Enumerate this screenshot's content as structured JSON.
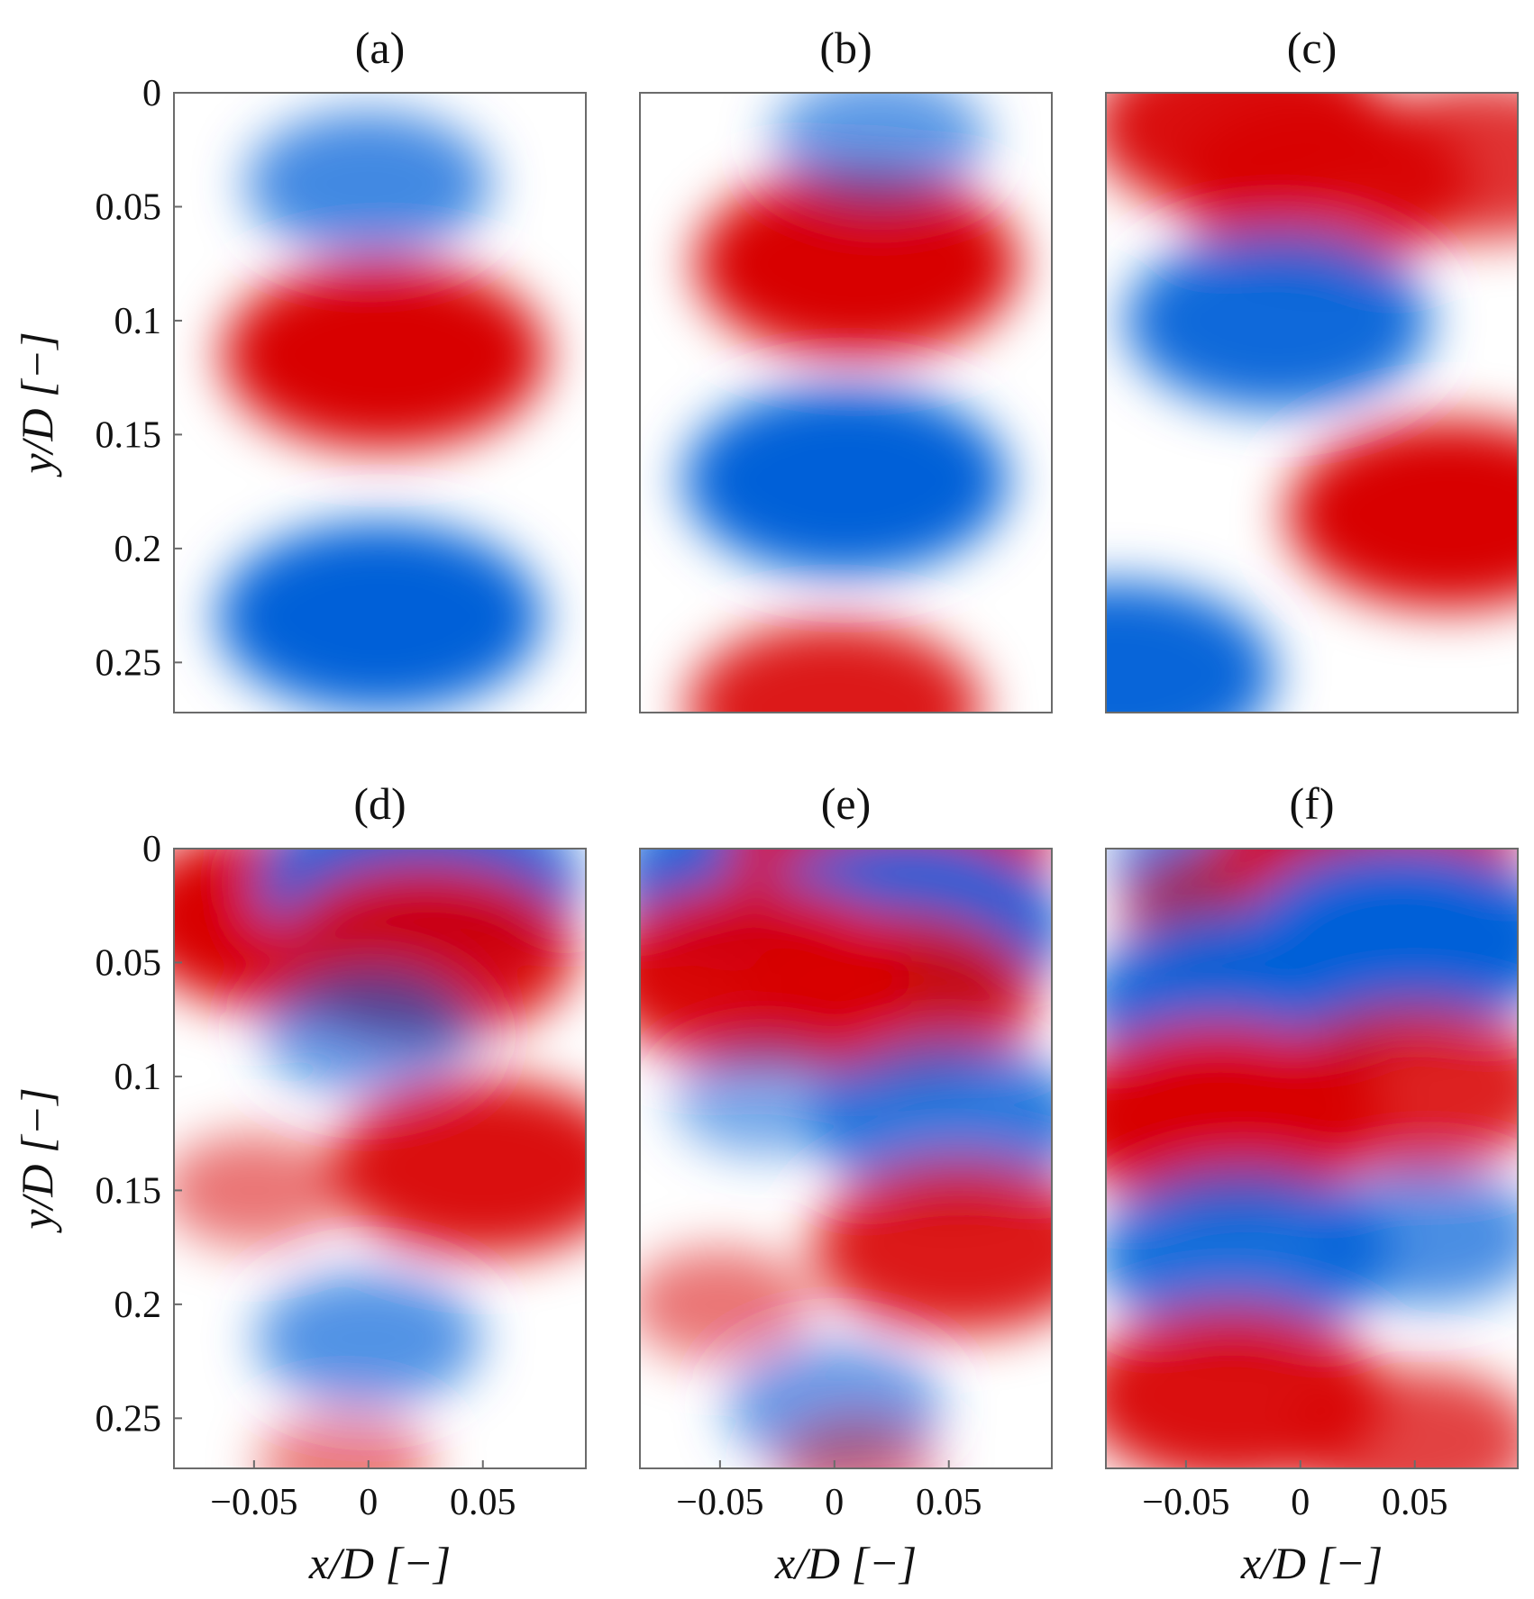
{
  "chart_data": [
    {
      "type": "heatmap",
      "title": "(a)",
      "xlabel": "",
      "ylabel": "y/D [−]",
      "xlim": [
        -0.085,
        0.095
      ],
      "ylim": [
        0,
        0.272
      ],
      "y_direction": "downward",
      "xticks": [],
      "xtick_labels": [],
      "yticks": [
        0,
        0.05,
        0.1,
        0.15,
        0.2,
        0.25
      ],
      "ytick_labels": [
        "0",
        "0.05",
        "0.1",
        "0.15",
        "0.2",
        "0.25"
      ],
      "colormap": "blue-white-red",
      "colorbar": false,
      "grid": false,
      "colors": {
        "positive": "#d80000",
        "negative": "#0060d8",
        "zero": "#ffffff"
      },
      "features": [
        {
          "sign": "negative",
          "x": 0.0,
          "y": 0.04,
          "strength": 0.6
        },
        {
          "sign": "positive",
          "x": 0.007,
          "y": 0.115,
          "strength": 1.0
        },
        {
          "sign": "negative",
          "x": 0.005,
          "y": 0.23,
          "strength": 1.0
        }
      ]
    },
    {
      "type": "heatmap",
      "title": "(b)",
      "xlabel": "",
      "ylabel": "",
      "xlim": [
        -0.085,
        0.095
      ],
      "ylim": [
        0,
        0.272
      ],
      "y_direction": "downward",
      "xticks": [],
      "xtick_labels": [],
      "yticks": [],
      "ytick_labels": [],
      "colormap": "blue-white-red",
      "colorbar": false,
      "grid": false,
      "colors": {
        "positive": "#d80000",
        "negative": "#0060d8",
        "zero": "#ffffff"
      },
      "features": [
        {
          "sign": "positive",
          "x": 0.01,
          "y": 0.075,
          "strength": 1.0
        },
        {
          "sign": "negative",
          "x": 0.02,
          "y": 0.02,
          "strength": 0.45
        },
        {
          "sign": "negative",
          "x": 0.005,
          "y": 0.17,
          "strength": 1.0
        },
        {
          "sign": "positive",
          "x": 0.0,
          "y": 0.27,
          "strength": 0.85
        }
      ]
    },
    {
      "type": "heatmap",
      "title": "(c)",
      "xlabel": "",
      "ylabel": "",
      "xlim": [
        -0.085,
        0.095
      ],
      "ylim": [
        0,
        0.272
      ],
      "y_direction": "downward",
      "xticks": [],
      "xtick_labels": [],
      "yticks": [],
      "ytick_labels": [],
      "colormap": "blue-white-red",
      "colorbar": false,
      "grid": false,
      "colors": {
        "positive": "#d80000",
        "negative": "#0060d8",
        "zero": "#ffffff"
      },
      "features": [
        {
          "sign": "positive",
          "x": -0.025,
          "y": 0.015,
          "strength": 0.9
        },
        {
          "sign": "positive",
          "x": 0.01,
          "y": 0.04,
          "strength": 0.85
        },
        {
          "sign": "positive",
          "x": 0.08,
          "y": 0.03,
          "strength": 0.7
        },
        {
          "sign": "negative",
          "x": -0.01,
          "y": 0.1,
          "strength": 0.9
        },
        {
          "sign": "positive",
          "x": 0.065,
          "y": 0.185,
          "strength": 1.0
        },
        {
          "sign": "negative",
          "x": -0.08,
          "y": 0.255,
          "strength": 0.95
        }
      ]
    },
    {
      "type": "heatmap",
      "title": "(d)",
      "xlabel": "x/D [−]",
      "ylabel": "y/D [−]",
      "xlim": [
        -0.085,
        0.095
      ],
      "ylim": [
        0,
        0.272
      ],
      "y_direction": "downward",
      "xticks": [
        -0.05,
        0,
        0.05
      ],
      "xtick_labels": [
        "−0.05",
        "0",
        "0.05"
      ],
      "yticks": [
        0,
        0.05,
        0.1,
        0.15,
        0.2,
        0.25
      ],
      "ytick_labels": [
        "0",
        "0.05",
        "0.1",
        "0.15",
        "0.2",
        "0.25"
      ],
      "colormap": "blue-white-red",
      "colorbar": false,
      "grid": false,
      "colors": {
        "positive": "#d80000",
        "negative": "#0060d8",
        "zero": "#ffffff"
      },
      "features": [
        {
          "sign": "positive",
          "x": -0.035,
          "y": 0.03,
          "strength": 1.0
        },
        {
          "sign": "negative",
          "x": 0.022,
          "y": 0.015,
          "strength": 1.0
        },
        {
          "sign": "positive",
          "x": 0.025,
          "y": 0.045,
          "strength": 0.9
        },
        {
          "sign": "negative",
          "x": 0.0,
          "y": 0.08,
          "strength": 0.45
        },
        {
          "sign": "positive",
          "x": 0.05,
          "y": 0.14,
          "strength": 0.9
        },
        {
          "sign": "positive",
          "x": -0.05,
          "y": 0.15,
          "strength": 0.3
        },
        {
          "sign": "negative",
          "x": 0.0,
          "y": 0.215,
          "strength": 0.5
        },
        {
          "sign": "positive",
          "x": -0.01,
          "y": 0.27,
          "strength": 0.25
        }
      ]
    },
    {
      "type": "heatmap",
      "title": "(e)",
      "xlabel": "x/D [−]",
      "ylabel": "",
      "xlim": [
        -0.085,
        0.095
      ],
      "ylim": [
        0,
        0.272
      ],
      "y_direction": "downward",
      "xticks": [
        -0.05,
        0,
        0.05
      ],
      "xtick_labels": [
        "−0.05",
        "0",
        "0.05"
      ],
      "yticks": [],
      "ytick_labels": [],
      "colormap": "blue-white-red",
      "colorbar": false,
      "grid": false,
      "colors": {
        "positive": "#d80000",
        "negative": "#0060d8",
        "zero": "#ffffff"
      },
      "features": [
        {
          "sign": "negative",
          "x": -0.025,
          "y": 0.015,
          "strength": 1.0
        },
        {
          "sign": "positive",
          "x": 0.025,
          "y": 0.0,
          "strength": 1.0
        },
        {
          "sign": "negative",
          "x": 0.03,
          "y": 0.035,
          "strength": 1.0
        },
        {
          "sign": "positive",
          "x": -0.035,
          "y": 0.055,
          "strength": 0.95
        },
        {
          "sign": "positive",
          "x": 0.025,
          "y": 0.065,
          "strength": 0.85
        },
        {
          "sign": "negative",
          "x": 0.05,
          "y": 0.12,
          "strength": 0.75
        },
        {
          "sign": "negative",
          "x": -0.03,
          "y": 0.11,
          "strength": 0.3
        },
        {
          "sign": "positive",
          "x": 0.055,
          "y": 0.175,
          "strength": 0.85
        },
        {
          "sign": "positive",
          "x": -0.05,
          "y": 0.2,
          "strength": 0.3
        },
        {
          "sign": "negative",
          "x": 0.0,
          "y": 0.245,
          "strength": 0.45
        },
        {
          "sign": "positive",
          "x": 0.01,
          "y": 0.272,
          "strength": 0.2
        }
      ]
    },
    {
      "type": "heatmap",
      "title": "(f)",
      "xlabel": "x/D [−]",
      "ylabel": "",
      "xlim": [
        -0.085,
        0.095
      ],
      "ylim": [
        0,
        0.272
      ],
      "y_direction": "downward",
      "xticks": [
        -0.05,
        0,
        0.05
      ],
      "xtick_labels": [
        "−0.05",
        "0",
        "0.05"
      ],
      "yticks": [],
      "ytick_labels": [],
      "colormap": "blue-white-red",
      "colorbar": false,
      "grid": false,
      "colors": {
        "positive": "#d80000",
        "negative": "#0060d8",
        "zero": "#ffffff"
      },
      "features": [
        {
          "sign": "negative",
          "x": -0.02,
          "y": 0.008,
          "strength": 0.8
        },
        {
          "sign": "positive",
          "x": 0.03,
          "y": 0.0,
          "strength": 0.9
        },
        {
          "sign": "positive",
          "x": -0.025,
          "y": 0.03,
          "strength": 0.6
        },
        {
          "sign": "negative",
          "x": 0.045,
          "y": 0.04,
          "strength": 1.0
        },
        {
          "sign": "negative",
          "x": -0.025,
          "y": 0.068,
          "strength": 0.95
        },
        {
          "sign": "positive",
          "x": -0.035,
          "y": 0.118,
          "strength": 1.0
        },
        {
          "sign": "positive",
          "x": 0.05,
          "y": 0.105,
          "strength": 0.8
        },
        {
          "sign": "negative",
          "x": -0.025,
          "y": 0.178,
          "strength": 0.85
        },
        {
          "sign": "negative",
          "x": 0.055,
          "y": 0.17,
          "strength": 0.55
        },
        {
          "sign": "positive",
          "x": -0.03,
          "y": 0.24,
          "strength": 0.9
        },
        {
          "sign": "positive",
          "x": 0.05,
          "y": 0.26,
          "strength": 0.6
        }
      ]
    }
  ]
}
